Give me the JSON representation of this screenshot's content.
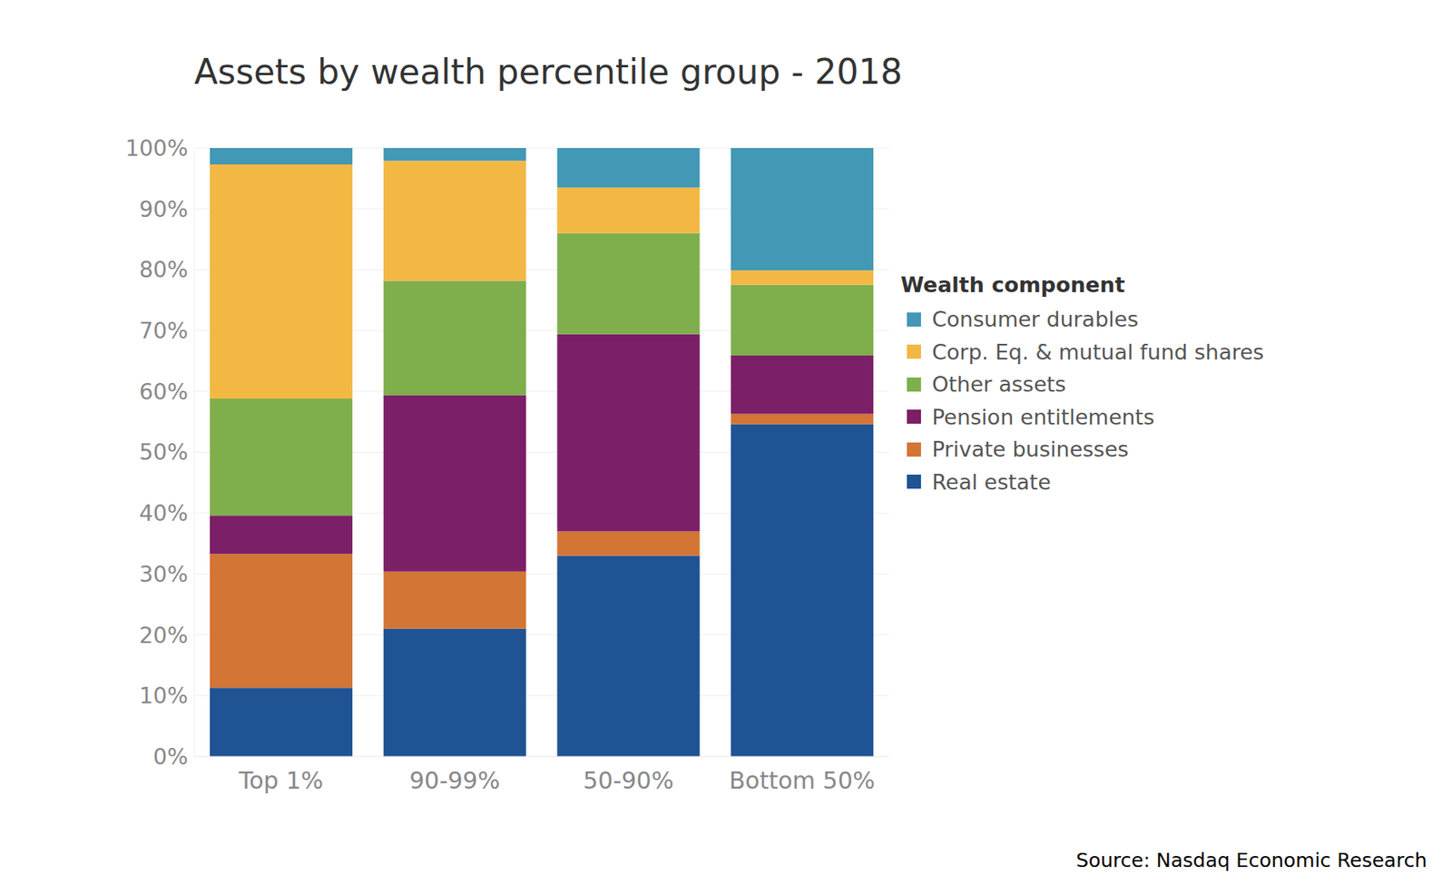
{
  "chart_data": {
    "type": "bar",
    "title": "Assets by wealth percentile group - 2018",
    "source": "Source: Nasdaq Economic Research",
    "legend_title": "Wealth component",
    "categories": [
      "Top 1%",
      "90-99%",
      "50-90%",
      "Bottom 50%"
    ],
    "series": [
      {
        "name": "Consumer durables",
        "color": "#4298b5",
        "values": [
          2.7,
          2.1,
          6.5,
          20.1
        ]
      },
      {
        "name": "Corp. Eq. & mutual fund shares",
        "color": "#f2b843",
        "values": [
          38.5,
          19.7,
          7.5,
          2.4
        ]
      },
      {
        "name": "Other assets",
        "color": "#7eaf4c",
        "values": [
          19.2,
          18.8,
          16.6,
          11.6
        ]
      },
      {
        "name": "Pension entitlements",
        "color": "#7b1f67",
        "values": [
          6.3,
          29.0,
          32.4,
          9.6
        ]
      },
      {
        "name": "Private businesses",
        "color": "#d37535",
        "values": [
          22.0,
          9.4,
          4.0,
          1.7
        ]
      },
      {
        "name": "Real estate",
        "color": "#1f5394",
        "values": [
          11.3,
          21.0,
          33.0,
          54.6
        ]
      }
    ],
    "ylim": [
      0,
      100
    ],
    "yticks": [
      {
        "value": 0,
        "label": "0%"
      },
      {
        "value": 10,
        "label": "10%"
      },
      {
        "value": 20,
        "label": "20%"
      },
      {
        "value": 30,
        "label": "30%"
      },
      {
        "value": 40,
        "label": "40%"
      },
      {
        "value": 50,
        "label": "50%"
      },
      {
        "value": 60,
        "label": "60%"
      },
      {
        "value": 70,
        "label": "70%"
      },
      {
        "value": 80,
        "label": "80%"
      },
      {
        "value": 90,
        "label": "90%"
      },
      {
        "value": 100,
        "label": "100%"
      }
    ],
    "stacked": true,
    "grid": true,
    "legend": "right"
  }
}
